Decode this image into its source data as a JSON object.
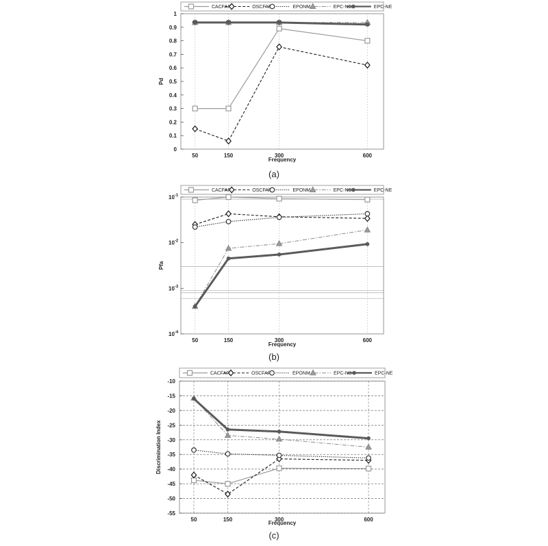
{
  "chart_data": [
    {
      "type": "line",
      "caption": "(a)",
      "xlabel": "Frequency",
      "ylabel": "Pd",
      "x": [
        50,
        150,
        300,
        600
      ],
      "x_ticks": [
        "50",
        "150",
        "300",
        "600"
      ],
      "y_scale": "linear",
      "ylim": [
        0,
        1
      ],
      "y_ticks": [
        "0",
        "0.1",
        "0.2",
        "0.3",
        "0.4",
        "0.5",
        "0.6",
        "0.7",
        "0.8",
        "0.9",
        "1"
      ],
      "series": [
        {
          "name": "CACFAR",
          "values": [
            0.3,
            0.3,
            0.89,
            0.8
          ]
        },
        {
          "name": "OSCFAR",
          "values": [
            0.15,
            0.06,
            0.755,
            0.62
          ]
        },
        {
          "name": "EPONM",
          "values": [
            0.935,
            0.935,
            0.935,
            0.925
          ]
        },
        {
          "name": "EPC-NS",
          "values": [
            0.935,
            0.935,
            0.935,
            0.935
          ]
        },
        {
          "name": "EPC-NE",
          "values": [
            0.935,
            0.935,
            0.935,
            0.92
          ]
        }
      ]
    },
    {
      "type": "line",
      "caption": "(b)",
      "xlabel": "Frequency",
      "ylabel": "Pfa",
      "x": [
        50,
        150,
        300,
        600
      ],
      "x_ticks": [
        "50",
        "150",
        "300",
        "600"
      ],
      "y_scale": "log",
      "ylim": [
        0.0001,
        0.1
      ],
      "y_ticks": [
        "10-1",
        "10-2",
        "10-3",
        "10-4"
      ],
      "series": [
        {
          "name": "CACFAR",
          "values": [
            0.085,
            0.1,
            0.092,
            0.088
          ]
        },
        {
          "name": "OSCFAR",
          "values": [
            0.025,
            0.043,
            0.037,
            0.034
          ]
        },
        {
          "name": "EPONM",
          "values": [
            0.022,
            0.029,
            0.036,
            0.043
          ]
        },
        {
          "name": "EPC-NS",
          "values": [
            0.0004,
            0.0075,
            0.0095,
            0.019
          ]
        },
        {
          "name": "EPC-NE",
          "values": [
            0.0004,
            0.0045,
            0.0055,
            0.0093
          ]
        }
      ]
    },
    {
      "type": "line",
      "caption": "(c)",
      "xlabel": "Frequency",
      "ylabel": "Discrimination Index",
      "x": [
        50,
        150,
        300,
        600
      ],
      "x_ticks": [
        "50",
        "150",
        "300",
        "600"
      ],
      "y_scale": "linear",
      "ylim": [
        -55,
        -10
      ],
      "y_ticks": [
        "-10",
        "-15",
        "-20",
        "-25",
        "-30",
        "-35",
        "-40",
        "-45",
        "-50",
        "-55"
      ],
      "series": [
        {
          "name": "CACFAR",
          "values": [
            -43.8,
            -45,
            -39.7,
            -39.8
          ]
        },
        {
          "name": "OSCFAR",
          "values": [
            -42,
            -48.5,
            -36.5,
            -37
          ]
        },
        {
          "name": "EPONM",
          "values": [
            -33.5,
            -34.8,
            -35.3,
            -36.2
          ]
        },
        {
          "name": "EPC-NS",
          "values": [
            -15.8,
            -28.5,
            -29.8,
            -32.5
          ]
        },
        {
          "name": "EPC-NE",
          "values": [
            -16,
            -26.5,
            -27.2,
            -29.5
          ]
        }
      ]
    }
  ]
}
